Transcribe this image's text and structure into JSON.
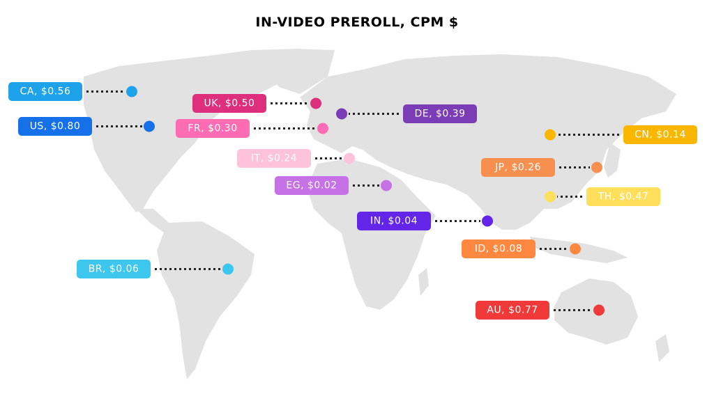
{
  "title": "IN-VIDEO PREROLL, CPM $",
  "markers": [
    {
      "label": "CA, $0.56",
      "color": "#1ea3ea"
    },
    {
      "label": "UK, $0.50",
      "color": "#de2f7c"
    },
    {
      "label": "DE, $0.39",
      "color": "#7a3db6"
    },
    {
      "label": "US, $0.80",
      "color": "#1670e8"
    },
    {
      "label": "FR, $0.30",
      "color": "#ff6cb3"
    },
    {
      "label": "CN, $0.14",
      "color": "#fbb700"
    },
    {
      "label": "IT, $0.24",
      "color": "#ffc2db"
    },
    {
      "label": "JP, $0.26",
      "color": "#f78f4f"
    },
    {
      "label": "EG, $0.02",
      "color": "#c672e6"
    },
    {
      "label": "TH, $0.47",
      "color": "#ffdf5c"
    },
    {
      "label": "IN, $0.04",
      "color": "#6326e8"
    },
    {
      "label": "ID, $0.08",
      "color": "#ff8840"
    },
    {
      "label": "BR, $0.06",
      "color": "#3dc7ee"
    },
    {
      "label": "AU, $0.77",
      "color": "#f03a3a"
    }
  ]
}
